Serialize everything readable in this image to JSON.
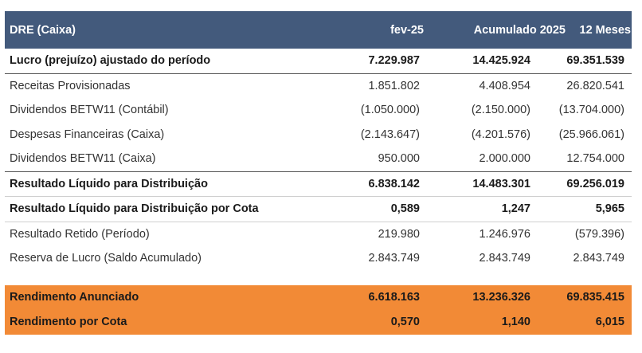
{
  "header": {
    "label": "DRE (Caixa)",
    "col1": "fev-25",
    "col2": "Acumulado 2025",
    "col3": "12 Meses"
  },
  "rows": [
    {
      "label": "Lucro (prejuízo) ajustado do período",
      "v1": "7.229.987",
      "v2": "14.425.924",
      "v3": "69.351.539"
    },
    {
      "label": "Receitas Provisionadas",
      "v1": "1.851.802",
      "v2": "4.408.954",
      "v3": "26.820.541"
    },
    {
      "label": "Dividendos BETW11 (Contábil)",
      "v1": "(1.050.000)",
      "v2": "(2.150.000)",
      "v3": "(13.704.000)"
    },
    {
      "label": "Despesas Financeiras (Caixa)",
      "v1": "(2.143.647)",
      "v2": "(4.201.576)",
      "v3": "(25.966.061)"
    },
    {
      "label": "Dividendos BETW11 (Caixa)",
      "v1": "950.000",
      "v2": "2.000.000",
      "v3": "12.754.000"
    },
    {
      "label": "Resultado Líquido para Distribuição",
      "v1": "6.838.142",
      "v2": "14.483.301",
      "v3": "69.256.019"
    },
    {
      "label": "Resultado Líquido para Distribuição por Cota",
      "v1": "0,589",
      "v2": "1,247",
      "v3": "5,965"
    },
    {
      "label": "Resultado Retido (Período)",
      "v1": "219.980",
      "v2": "1.246.976",
      "v3": "(579.396)"
    },
    {
      "label": "Reserva de Lucro (Saldo Acumulado)",
      "v1": "2.843.749",
      "v2": "2.843.749",
      "v3": "2.843.749"
    }
  ],
  "highlight_rows": [
    {
      "label": "Rendimento Anunciado",
      "v1": "6.618.163",
      "v2": "13.236.326",
      "v3": "69.835.415"
    },
    {
      "label": "Rendimento por Cota",
      "v1": "0,570",
      "v2": "1,140",
      "v3": "6,015"
    }
  ],
  "colors": {
    "header_bg": "#435a7c",
    "highlight_bg": "#f28a36"
  }
}
